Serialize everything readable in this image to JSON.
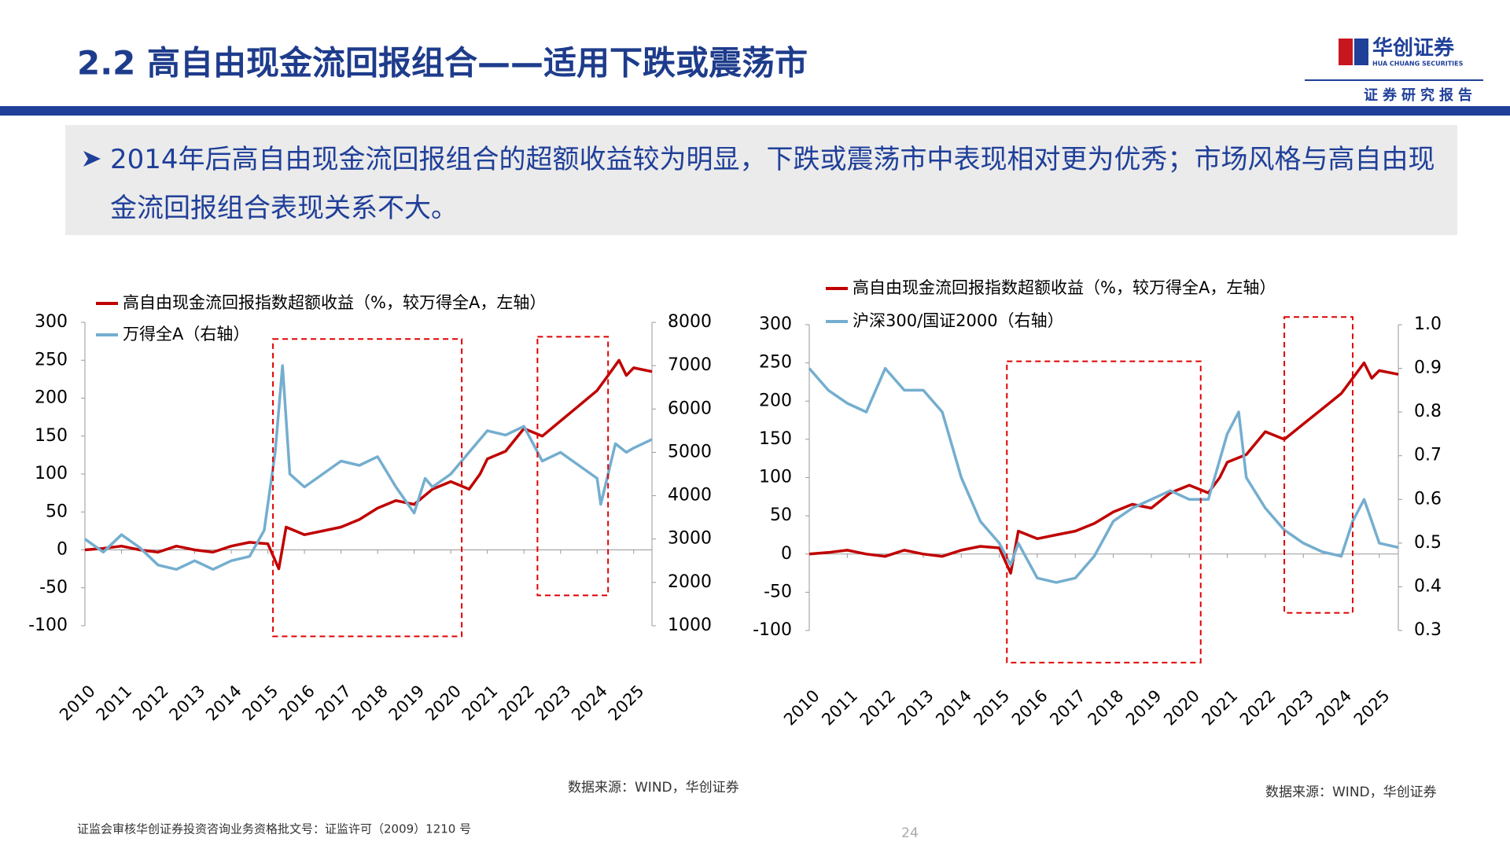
{
  "header": {
    "title": "2.2 高自由现金流回报组合——适用下跌或震荡市",
    "logo_name": "华创证券",
    "logo_subname": "HUA CHUANG SECURITIES",
    "report_tag": "证券研究报告"
  },
  "bullet": "2014年后高自由现金流回报组合的超额收益较为明显，下跌或震荡市中表现相对更为优秀；市场风格与高自由现金流回报组合表现关系不大。",
  "footer": {
    "note": "证监会审核华创证券投资咨询业务资格批文号：证监许可（2009）1210 号",
    "page": "24"
  },
  "chart_data": [
    {
      "type": "line",
      "source": "数据来源：WIND，华创证券",
      "xlim": [
        2010,
        2025.5
      ],
      "xticks": [
        2010,
        2011,
        2012,
        2013,
        2014,
        2015,
        2016,
        2017,
        2018,
        2019,
        2020,
        2021,
        2022,
        2023,
        2024,
        2025
      ],
      "ylim": [
        -100,
        300
      ],
      "yticks": [
        -100,
        -50,
        0,
        50,
        100,
        150,
        200,
        250,
        300
      ],
      "y2lim": [
        1000,
        8000
      ],
      "y2ticks": [
        1000,
        2000,
        3000,
        4000,
        5000,
        6000,
        7000,
        8000
      ],
      "series": [
        {
          "name": "高自由现金流回报指数超额收益（%，较万得全A，左轴）",
          "color": "#c00000",
          "x": [
            2010,
            2010.5,
            2011,
            2011.5,
            2012,
            2012.5,
            2013,
            2013.5,
            2014,
            2014.5,
            2015,
            2015.3,
            2015.5,
            2016,
            2016.5,
            2017,
            2017.5,
            2018,
            2018.5,
            2019,
            2019.5,
            2020,
            2020.5,
            2020.8,
            2021,
            2021.5,
            2022,
            2022.5,
            2023,
            2023.5,
            2024,
            2024.3,
            2024.6,
            2024.8,
            2025,
            2025.5
          ],
          "values": [
            0,
            2,
            5,
            0,
            -3,
            5,
            0,
            -3,
            5,
            10,
            8,
            -25,
            30,
            20,
            25,
            30,
            40,
            55,
            65,
            60,
            80,
            90,
            80,
            100,
            120,
            130,
            160,
            150,
            170,
            190,
            210,
            230,
            250,
            230,
            240,
            235
          ]
        },
        {
          "name": "万得全A（右轴）",
          "color": "#74aecf",
          "axis": "y2",
          "x": [
            2010,
            2010.5,
            2011,
            2011.5,
            2012,
            2012.5,
            2013,
            2013.5,
            2014,
            2014.5,
            2014.9,
            2015.2,
            2015.4,
            2015.6,
            2016,
            2016.5,
            2017,
            2017.5,
            2018,
            2018.5,
            2019,
            2019.3,
            2019.5,
            2020,
            2020.5,
            2021,
            2021.5,
            2022,
            2022.5,
            2023,
            2023.5,
            2024,
            2024.1,
            2024.5,
            2024.8,
            2025,
            2025.5
          ],
          "values": [
            3000,
            2700,
            3100,
            2800,
            2400,
            2300,
            2500,
            2300,
            2500,
            2600,
            3200,
            5000,
            7000,
            4500,
            4200,
            4500,
            4800,
            4700,
            4900,
            4200,
            3600,
            4400,
            4200,
            4500,
            5000,
            5500,
            5400,
            5600,
            4800,
            5000,
            4700,
            4400,
            3800,
            5200,
            5000,
            5100,
            5300
          ]
        }
      ],
      "highlights": [
        {
          "x": [
            2015.14,
            2020.3
          ],
          "y": [
            -114,
            278
          ]
        },
        {
          "x": [
            2022.37,
            2024.3
          ],
          "y": [
            -60,
            281
          ]
        }
      ]
    },
    {
      "type": "line",
      "source": "数据来源：WIND，华创证券",
      "xlim": [
        2010,
        2025.5
      ],
      "xticks": [
        2010,
        2011,
        2012,
        2013,
        2014,
        2015,
        2016,
        2017,
        2018,
        2019,
        2020,
        2021,
        2022,
        2023,
        2024,
        2025
      ],
      "ylim": [
        -100,
        300
      ],
      "yticks": [
        -100,
        -50,
        0,
        50,
        100,
        150,
        200,
        250,
        300
      ],
      "y2lim": [
        0.3,
        1
      ],
      "y2ticks": [
        0.3,
        0.4,
        0.5,
        0.6,
        0.7,
        0.8,
        0.9,
        {
          "value": 1,
          "label": "1.0"
        }
      ],
      "series": [
        {
          "name": "高自由现金流回报指数超额收益（%，较万得全A，左轴）",
          "color": "#c00000",
          "x": [
            2010,
            2010.5,
            2011,
            2011.5,
            2012,
            2012.5,
            2013,
            2013.5,
            2014,
            2014.5,
            2015,
            2015.3,
            2015.5,
            2016,
            2016.5,
            2017,
            2017.5,
            2018,
            2018.5,
            2019,
            2019.5,
            2020,
            2020.5,
            2020.8,
            2021,
            2021.5,
            2022,
            2022.5,
            2023,
            2023.5,
            2024,
            2024.3,
            2024.6,
            2024.8,
            2025,
            2025.5
          ],
          "values": [
            0,
            2,
            5,
            0,
            -3,
            5,
            0,
            -3,
            5,
            10,
            8,
            -25,
            30,
            20,
            25,
            30,
            40,
            55,
            65,
            60,
            80,
            90,
            80,
            100,
            120,
            130,
            160,
            150,
            170,
            190,
            210,
            230,
            250,
            230,
            240,
            235
          ]
        },
        {
          "name": "沪深300/国证2000（右轴）",
          "color": "#74aecf",
          "axis": "y2",
          "x": [
            2010,
            2010.5,
            2011,
            2011.5,
            2012,
            2012.5,
            2013,
            2013.5,
            2014,
            2014.5,
            2015,
            2015.3,
            2015.5,
            2016,
            2016.5,
            2017,
            2017.5,
            2018,
            2018.5,
            2019,
            2019.5,
            2020,
            2020.5,
            2021,
            2021.3,
            2021.5,
            2022,
            2022.5,
            2023,
            2023.5,
            2024,
            2024.3,
            2024.6,
            2024.8,
            2025,
            2025.5
          ],
          "values": [
            0.9,
            0.85,
            0.82,
            0.8,
            0.9,
            0.85,
            0.85,
            0.8,
            0.65,
            0.55,
            0.5,
            0.45,
            0.5,
            0.42,
            0.41,
            0.42,
            0.47,
            0.55,
            0.58,
            0.6,
            0.62,
            0.6,
            0.6,
            0.75,
            0.8,
            0.65,
            0.58,
            0.53,
            0.5,
            0.48,
            0.47,
            0.55,
            0.6,
            0.55,
            0.5,
            0.49
          ]
        }
      ],
      "highlights": [
        {
          "x": [
            2015.2,
            2020.3
          ],
          "y": [
            -142,
            252
          ]
        },
        {
          "x": [
            2022.5,
            2024.3
          ],
          "y": [
            -77,
            310
          ]
        }
      ]
    }
  ]
}
